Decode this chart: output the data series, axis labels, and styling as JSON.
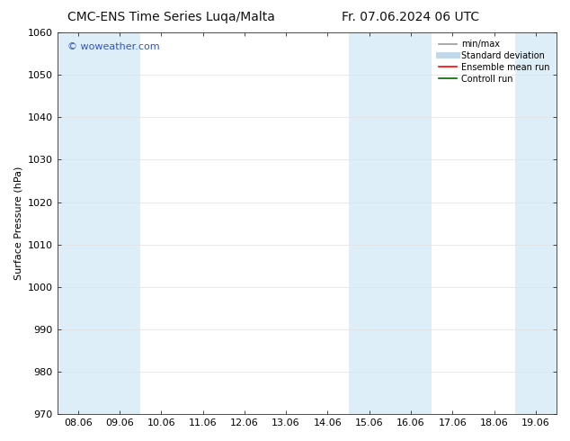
{
  "title_left": "CMC-ENS Time Series Luqa/Malta",
  "title_right": "Fr. 07.06.2024 06 UTC",
  "ylabel": "Surface Pressure (hPa)",
  "ylim": [
    970,
    1060
  ],
  "yticks": [
    970,
    980,
    990,
    1000,
    1010,
    1020,
    1030,
    1040,
    1050,
    1060
  ],
  "xtick_labels": [
    "08.06",
    "09.06",
    "10.06",
    "11.06",
    "12.06",
    "13.06",
    "14.06",
    "15.06",
    "16.06",
    "17.06",
    "18.06",
    "19.06"
  ],
  "band_color": "#ddeef8",
  "background_color": "#ffffff",
  "watermark": "© woweather.com",
  "watermark_color": "#3355bb",
  "legend_entries": [
    {
      "label": "min/max",
      "color": "#999999",
      "lw": 1.2,
      "style": "solid"
    },
    {
      "label": "Standard deviation",
      "color": "#c0d8ea",
      "lw": 5,
      "style": "solid"
    },
    {
      "label": "Ensemble mean run",
      "color": "#ff0000",
      "lw": 1.2,
      "style": "solid"
    },
    {
      "label": "Controll run",
      "color": "#006600",
      "lw": 1.2,
      "style": "solid"
    }
  ],
  "title_fontsize": 10,
  "ylabel_fontsize": 8,
  "tick_fontsize": 8,
  "legend_fontsize": 7,
  "watermark_fontsize": 8
}
